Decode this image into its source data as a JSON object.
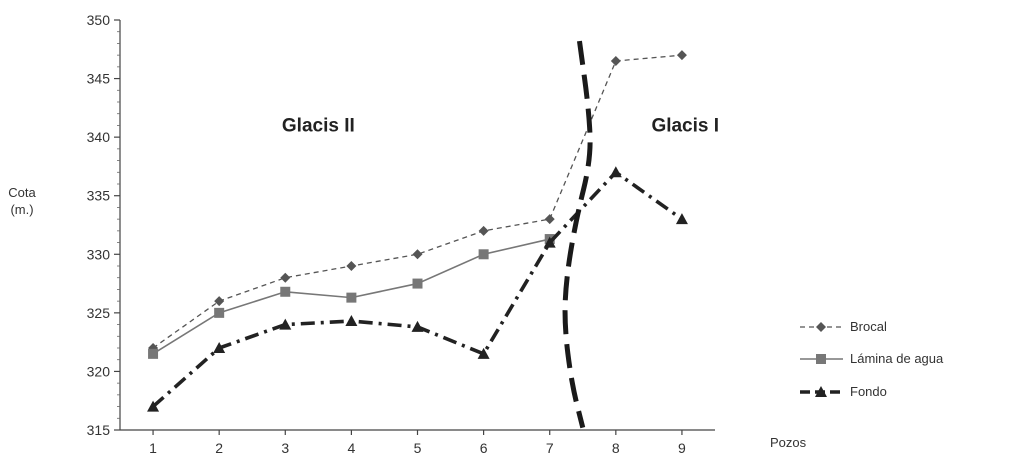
{
  "chart_data": {
    "type": "line",
    "xlabel": "Pozos",
    "ylabel_lines": [
      "Cota",
      "(m.)"
    ],
    "x": [
      1,
      2,
      3,
      4,
      5,
      6,
      7,
      8,
      9
    ],
    "xlim": [
      0.5,
      9.5
    ],
    "ylim": [
      315,
      350
    ],
    "yticks": [
      315,
      320,
      325,
      330,
      335,
      340,
      345,
      350
    ],
    "series": [
      {
        "name": "Brocal",
        "values": [
          322,
          326,
          328,
          329,
          330,
          332,
          333,
          346.5,
          347
        ],
        "marker": "diamond",
        "dash": "dashed-thin",
        "color": "#555555"
      },
      {
        "name": "Lámina de agua",
        "values": [
          321.5,
          325,
          326.8,
          326.3,
          327.5,
          330,
          331.3,
          null,
          null
        ],
        "marker": "square",
        "dash": "solid",
        "color": "#777777"
      },
      {
        "name": "Fondo",
        "values": [
          317,
          322,
          324,
          324.3,
          323.8,
          321.5,
          331,
          337,
          333
        ],
        "marker": "triangle",
        "dash": "dashdot-thick",
        "color": "#222222"
      }
    ],
    "boundary": {
      "points": [
        [
          7.45,
          348.2
        ],
        [
          7.6,
          342
        ],
        [
          7.62,
          338
        ],
        [
          7.4,
          333
        ],
        [
          7.25,
          328
        ],
        [
          7.22,
          324
        ],
        [
          7.33,
          319
        ],
        [
          7.5,
          315.2
        ]
      ],
      "color": "#1a1a1a"
    },
    "annotations": [
      {
        "text": "Glacis II",
        "x": 3.5,
        "y": 340.5
      },
      {
        "text": "Glacis I",
        "x": 9.05,
        "y": 340.5
      }
    ],
    "legend": "bottom-right",
    "grid": false
  }
}
